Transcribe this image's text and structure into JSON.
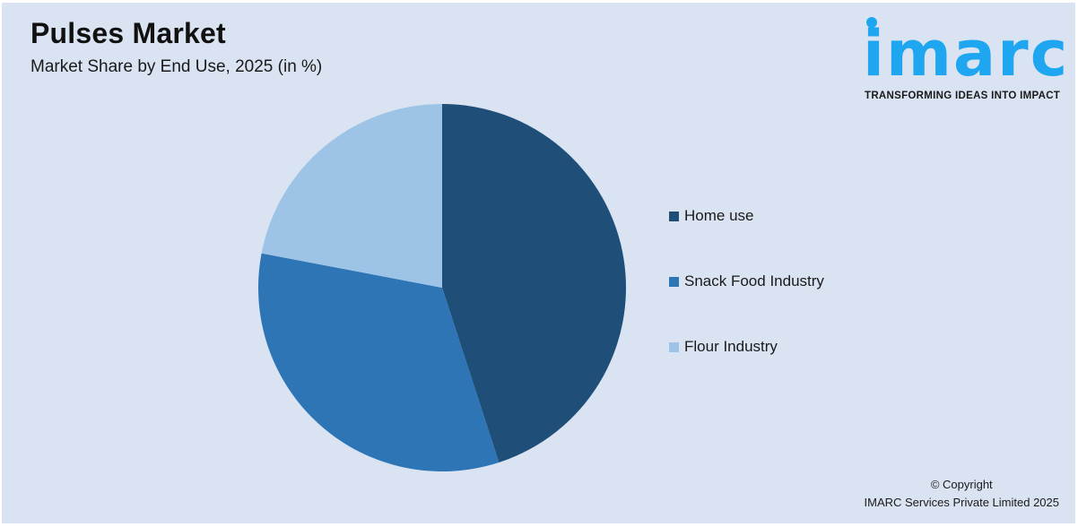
{
  "header": {
    "title": "Pulses Market",
    "subtitle": "Market Share by End Use, 2025 (in %)"
  },
  "logo": {
    "wordmark": "imarc",
    "tagline": "TRANSFORMING IDEAS INTO IMPACT",
    "color": "#1ea7f0"
  },
  "legend": {
    "items": [
      {
        "label": "Home use",
        "color": "#1f4e79"
      },
      {
        "label": "Snack Food Industry",
        "color": "#2e75b6"
      },
      {
        "label": "Flour Industry",
        "color": "#9dc3e6"
      }
    ]
  },
  "footer": {
    "line1": "© Copyright",
    "line2": "IMARC Services Private Limited 2025"
  },
  "chart_data": {
    "type": "pie",
    "title": "Pulses Market",
    "subtitle": "Market Share by End Use, 2025 (in %)",
    "categories": [
      "Home use",
      "Snack Food Industry",
      "Flour Industry"
    ],
    "values": [
      45,
      33,
      22
    ],
    "colors": [
      "#1f4e79",
      "#2e75b6",
      "#9dc3e6"
    ],
    "start_angle": "12 o'clock, clockwise",
    "legend_position": "right",
    "data_labels": false
  }
}
